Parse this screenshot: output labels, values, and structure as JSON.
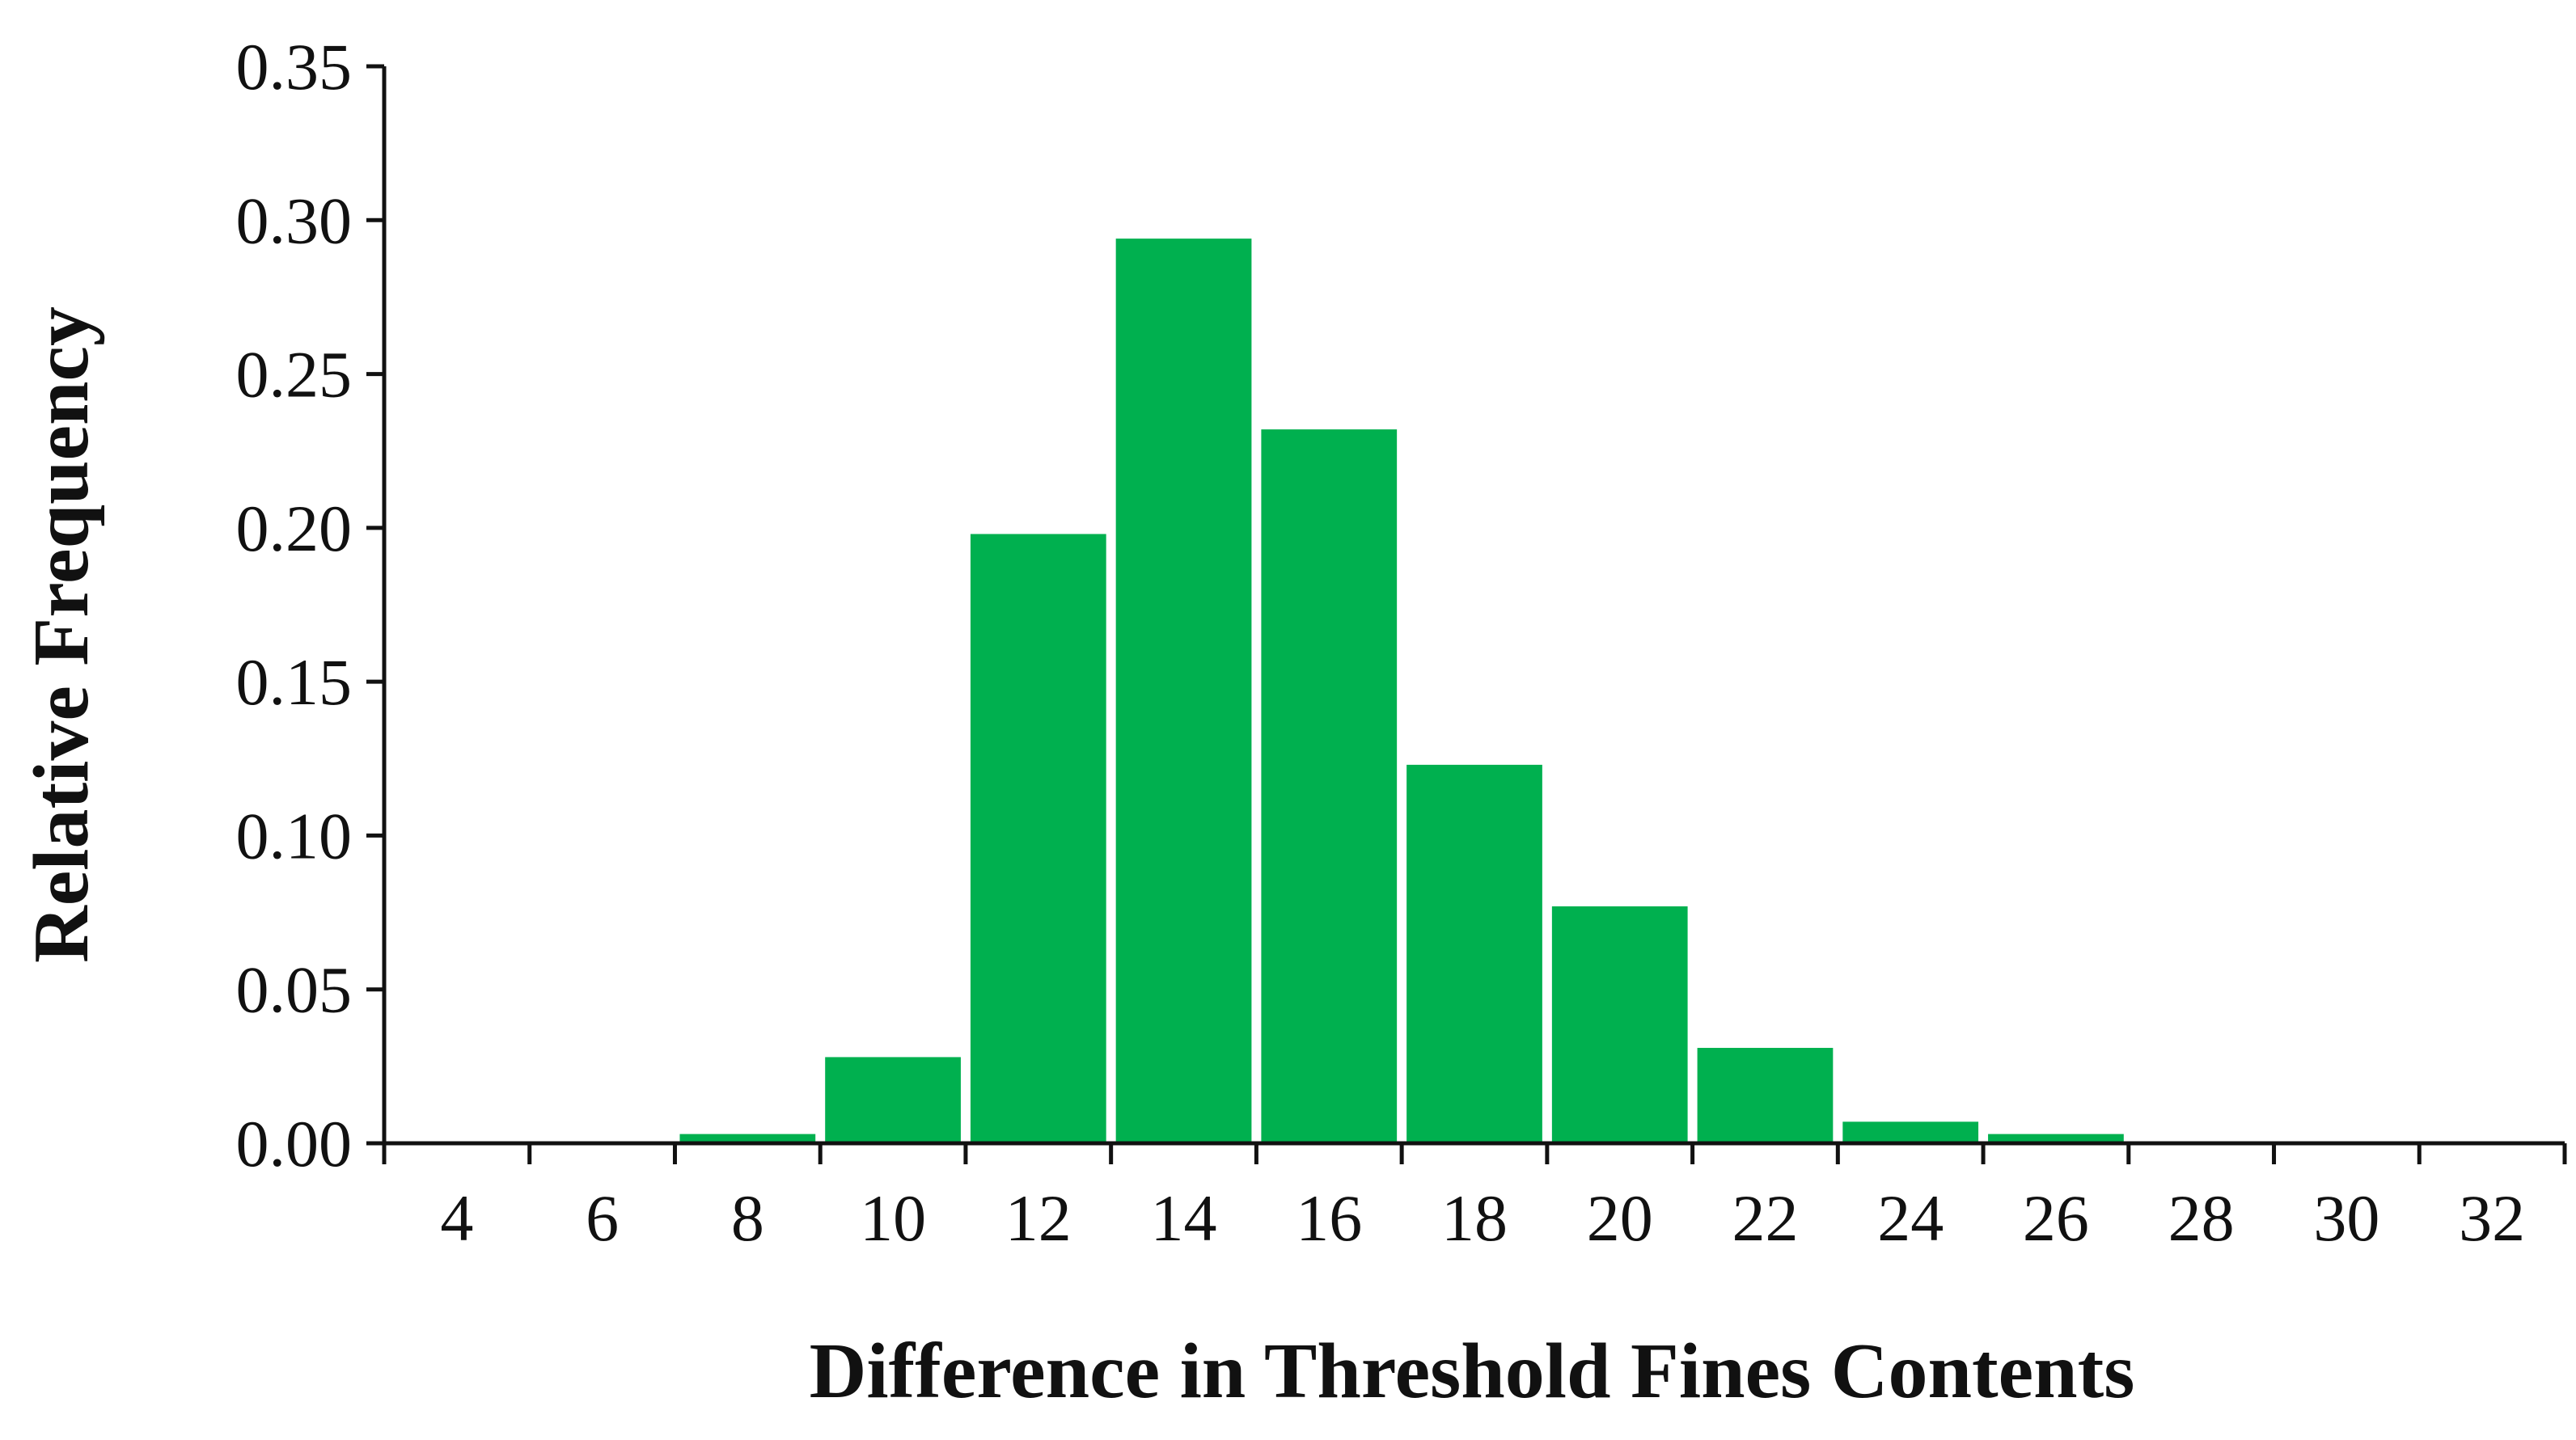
{
  "chart_data": {
    "type": "bar",
    "x_label": "Difference in Threshold Fines Contents",
    "y_label": "Relative Frequency",
    "categories": [
      4,
      6,
      8,
      10,
      12,
      14,
      16,
      18,
      20,
      22,
      24,
      26,
      28,
      30,
      32
    ],
    "values": [
      0,
      0,
      0.003,
      0.028,
      0.198,
      0.294,
      0.232,
      0.123,
      0.077,
      0.031,
      0.007,
      0.003,
      0,
      0,
      0
    ],
    "color": "#00b04f",
    "ylim": [
      0,
      0.35
    ],
    "yticks": [
      {
        "value": 0,
        "label": "0.00"
      },
      {
        "value": 0.05,
        "label": "0.05"
      },
      {
        "value": 0.1,
        "label": "0.10"
      },
      {
        "value": 0.15,
        "label": "0.15"
      },
      {
        "value": 0.2,
        "label": "0.20"
      },
      {
        "value": 0.25,
        "label": "0.25"
      },
      {
        "value": 0.3,
        "label": "0.30"
      },
      {
        "value": 0.35,
        "label": "0.35"
      }
    ],
    "grid": false
  }
}
